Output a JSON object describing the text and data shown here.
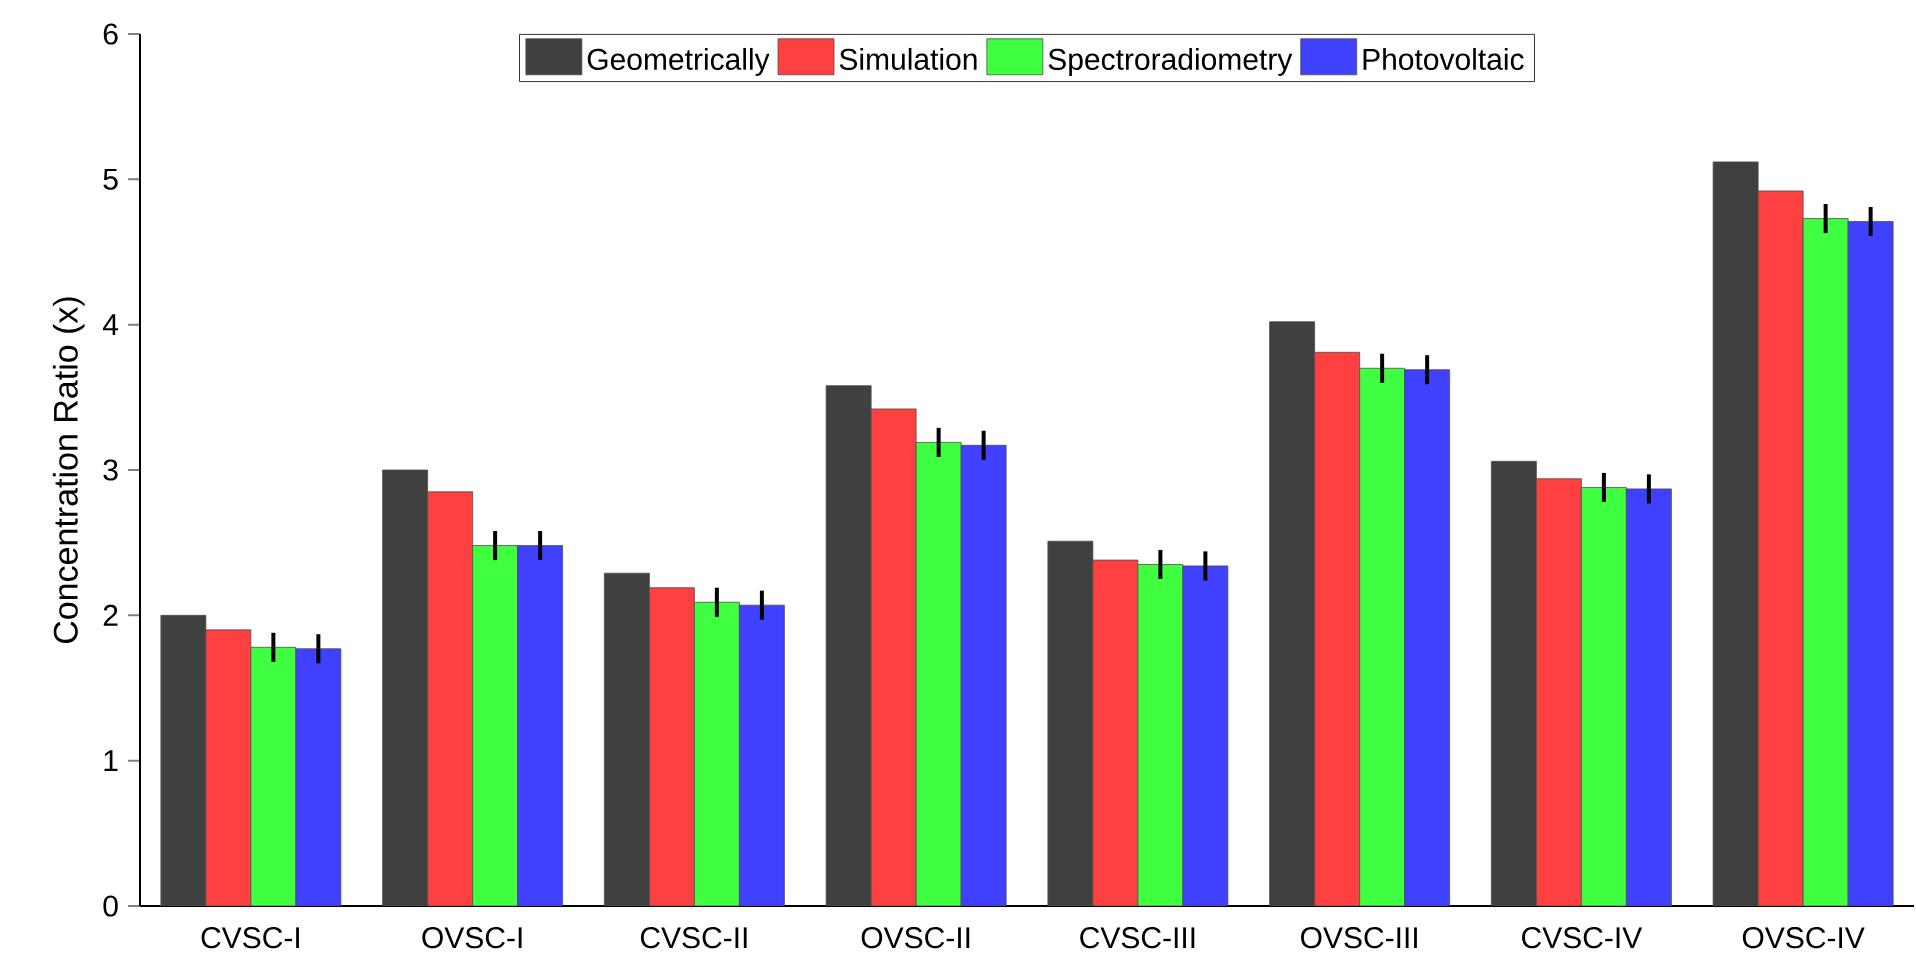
{
  "chart_data": {
    "type": "bar",
    "ylabel": "Concentration Ratio (x)",
    "categories": [
      "CVSC-I",
      "OVSC-I",
      "CVSC-II",
      "OVSC-II",
      "CVSC-III",
      "OVSC-III",
      "CVSC-IV",
      "OVSC-IV"
    ],
    "series": [
      {
        "name": "Geometrically",
        "color": "#404040",
        "values": [
          2.0,
          3.0,
          2.29,
          3.58,
          2.51,
          4.02,
          3.06,
          5.12
        ]
      },
      {
        "name": "Simulation",
        "color": "#ff4040",
        "values": [
          1.9,
          2.85,
          2.19,
          3.42,
          2.38,
          3.81,
          2.94,
          4.92
        ]
      },
      {
        "name": "Spectroradiometry",
        "color": "#40ff40",
        "values": [
          1.78,
          2.48,
          2.09,
          3.19,
          2.35,
          3.7,
          2.88,
          4.73
        ],
        "errors": [
          0.1,
          0.1,
          0.1,
          0.1,
          0.1,
          0.1,
          0.1,
          0.1
        ]
      },
      {
        "name": "Photovoltaic",
        "color": "#4040ff",
        "values": [
          1.77,
          2.48,
          2.07,
          3.17,
          2.34,
          3.69,
          2.87,
          4.71
        ],
        "errors": [
          0.1,
          0.1,
          0.1,
          0.1,
          0.1,
          0.1,
          0.1,
          0.1
        ]
      }
    ],
    "ylim": [
      0,
      6
    ],
    "yticks": [
      0,
      1,
      2,
      3,
      4,
      5,
      6
    ],
    "legend": "top"
  }
}
